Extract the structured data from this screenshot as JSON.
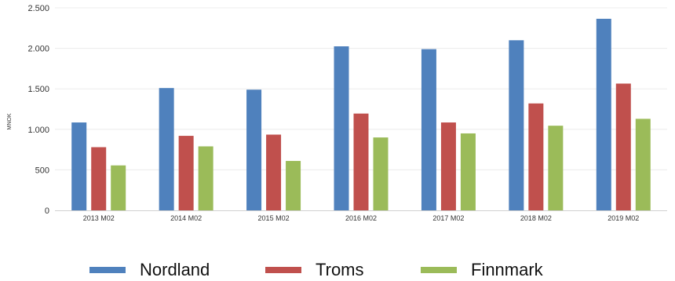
{
  "chart_data": {
    "type": "bar",
    "ylabel": "MNOK",
    "xlabel": "",
    "ylim": [
      0,
      2500
    ],
    "yticks": [
      0,
      500,
      1000,
      1500,
      2000,
      2500
    ],
    "ytick_labels": [
      "0",
      "500",
      "1.000",
      "1.500",
      "2.000",
      "2.500"
    ],
    "categories": [
      "2013 M02",
      "2014 M02",
      "2015 M02",
      "2016 M02",
      "2017 M02",
      "2018 M02",
      "2019 M02"
    ],
    "series": [
      {
        "name": "Nordland",
        "color": "#4F81BD",
        "values": [
          1085,
          1510,
          1490,
          2025,
          1990,
          2100,
          2365
        ]
      },
      {
        "name": "Troms",
        "color": "#C0504D",
        "values": [
          780,
          920,
          935,
          1195,
          1085,
          1320,
          1565
        ]
      },
      {
        "name": "Finnmark",
        "color": "#9BBB59",
        "values": [
          555,
          790,
          610,
          900,
          950,
          1045,
          1130
        ]
      }
    ],
    "grid": true,
    "legend_position": "bottom"
  }
}
